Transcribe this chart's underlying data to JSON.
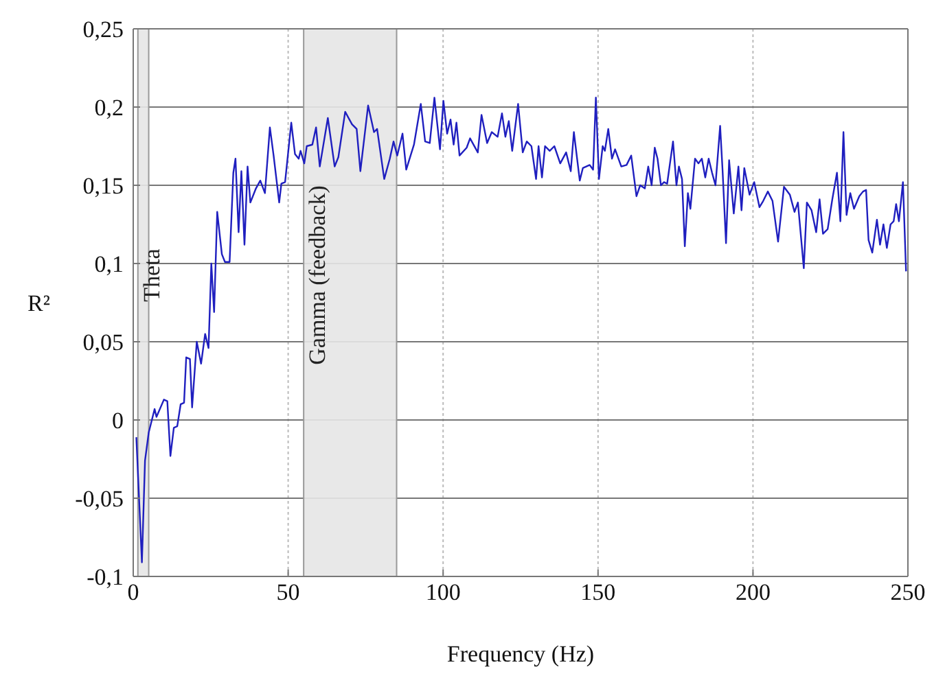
{
  "chart_data": {
    "type": "line",
    "xlabel": "Frequency (Hz)",
    "ylabel": "R²",
    "xlim": [
      0,
      250
    ],
    "xticks": [
      0,
      50,
      100,
      150,
      200,
      250
    ],
    "ylim": [
      -0.1,
      0.25
    ],
    "yticks": [
      {
        "value": -0.1,
        "label": "-0,1"
      },
      {
        "value": -0.05,
        "label": "-0,05"
      },
      {
        "value": 0,
        "label": "0"
      },
      {
        "value": 0.05,
        "label": "0,05"
      },
      {
        "value": 0.1,
        "label": "0,1"
      },
      {
        "value": 0.15,
        "label": "0,15"
      },
      {
        "value": 0.2,
        "label": "0,2"
      },
      {
        "value": 0.25,
        "label": "0,25"
      }
    ],
    "grid": true,
    "marker": "none",
    "line_style": "solid",
    "bands": [
      {
        "axis": "x",
        "from": 1.5,
        "to": 5,
        "label": "Theta",
        "color": "#e6e6e6"
      },
      {
        "axis": "x",
        "from": 55,
        "to": 85,
        "label": "Gamma (feedback)",
        "color": "#e6e6e6"
      }
    ],
    "series": [
      {
        "color": "#1f1fbf",
        "x": [
          1.0,
          2.8,
          3.8,
          5.0,
          6.9,
          7.5,
          9.9,
          11,
          12,
          13.1,
          14.2,
          15.3,
          16.4,
          17.1,
          18.3,
          19.0,
          20.5,
          21.9,
          23.2,
          24.3,
          25.2,
          26.1,
          27.1,
          28.6,
          29.6,
          31.1,
          32.3,
          33.0,
          34.0,
          34.9,
          35.9,
          36.9,
          37.8,
          39.6,
          41.0,
          42.5,
          44.1,
          45.3,
          47.1,
          47.8,
          49.0,
          51.0,
          52.2,
          53.4,
          54.0,
          55.2,
          56.0,
          57.8,
          59.0,
          60.2,
          62.8,
          65.0,
          66.2,
          68.4,
          70.6,
          72.1,
          73.3,
          75.8,
          77.7,
          78.7,
          81.0,
          82.8,
          84.0,
          85.2,
          86.9,
          88.1,
          90.6,
          92.8,
          94.2,
          95.7,
          97.2,
          99.0,
          100.1,
          101.3,
          102.4,
          103.4,
          104.3,
          105.3,
          107.6,
          108.7,
          111.2,
          112.4,
          114.2,
          115.7,
          117.6,
          119.0,
          120.1,
          121.2,
          122.3,
          124.2,
          125.7,
          127.0,
          128.5,
          130.0,
          130.8,
          131.9,
          132.9,
          134.4,
          135.9,
          137.8,
          139.7,
          141.2,
          142.2,
          144.1,
          145.1,
          147.3,
          148.4,
          149.3,
          150.3,
          151.5,
          152.2,
          153.3,
          154.5,
          155.5,
          157.5,
          159.2,
          160.7,
          162.4,
          163.6,
          165.1,
          166.2,
          167.3,
          168.3,
          169.2,
          170.3,
          171.3,
          172.3,
          174.2,
          175.3,
          176.1,
          177.1,
          178.0,
          179.0,
          179.8,
          181.3,
          182.4,
          183.5,
          184.6,
          185.7,
          186.8,
          187.9,
          189.4,
          190.2,
          191.3,
          192.3,
          193.8,
          195.3,
          196.3,
          197.2,
          198.9,
          200.4,
          202.1,
          203.3,
          204.8,
          206.3,
          208.1,
          210.0,
          211.9,
          213.4,
          214.5,
          216.4,
          217.4,
          218.9,
          220.4,
          221.5,
          222.6,
          224.1,
          225.6,
          227.1,
          228.2,
          229.2,
          230.2,
          231.4,
          232.6,
          234.3,
          235.5,
          236.5,
          237.3,
          238.5,
          240.0,
          241.0,
          242.1,
          243.2,
          244.4,
          245.4,
          246.2,
          247.1,
          248.4,
          249.4
        ],
        "values": [
          -0.011,
          -0.091,
          -0.026,
          -0.008,
          0.007,
          0.002,
          0.013,
          0.012,
          -0.023,
          -0.005,
          -0.004,
          0.01,
          0.011,
          0.04,
          0.039,
          0.008,
          0.05,
          0.036,
          0.055,
          0.046,
          0.1,
          0.069,
          0.133,
          0.106,
          0.101,
          0.101,
          0.158,
          0.167,
          0.12,
          0.159,
          0.112,
          0.162,
          0.139,
          0.148,
          0.153,
          0.145,
          0.187,
          0.169,
          0.139,
          0.151,
          0.152,
          0.19,
          0.17,
          0.167,
          0.172,
          0.164,
          0.175,
          0.176,
          0.187,
          0.162,
          0.193,
          0.162,
          0.168,
          0.197,
          0.189,
          0.186,
          0.159,
          0.201,
          0.184,
          0.186,
          0.154,
          0.167,
          0.178,
          0.169,
          0.183,
          0.16,
          0.176,
          0.202,
          0.178,
          0.177,
          0.206,
          0.173,
          0.204,
          0.183,
          0.192,
          0.176,
          0.19,
          0.169,
          0.174,
          0.18,
          0.171,
          0.195,
          0.177,
          0.184,
          0.181,
          0.196,
          0.181,
          0.191,
          0.172,
          0.202,
          0.171,
          0.178,
          0.175,
          0.154,
          0.175,
          0.155,
          0.175,
          0.172,
          0.175,
          0.164,
          0.171,
          0.159,
          0.184,
          0.153,
          0.161,
          0.163,
          0.16,
          0.206,
          0.154,
          0.175,
          0.172,
          0.186,
          0.167,
          0.173,
          0.162,
          0.163,
          0.169,
          0.143,
          0.15,
          0.148,
          0.162,
          0.15,
          0.174,
          0.167,
          0.15,
          0.152,
          0.151,
          0.178,
          0.15,
          0.162,
          0.154,
          0.111,
          0.145,
          0.135,
          0.167,
          0.164,
          0.167,
          0.155,
          0.167,
          0.158,
          0.15,
          0.188,
          0.159,
          0.113,
          0.166,
          0.132,
          0.162,
          0.134,
          0.161,
          0.144,
          0.152,
          0.136,
          0.14,
          0.146,
          0.14,
          0.114,
          0.149,
          0.144,
          0.133,
          0.139,
          0.097,
          0.139,
          0.134,
          0.12,
          0.141,
          0.119,
          0.122,
          0.141,
          0.158,
          0.127,
          0.184,
          0.131,
          0.145,
          0.135,
          0.143,
          0.146,
          0.147,
          0.115,
          0.107,
          0.128,
          0.112,
          0.125,
          0.11,
          0.125,
          0.127,
          0.138,
          0.127,
          0.152,
          0.095
        ]
      }
    ]
  }
}
